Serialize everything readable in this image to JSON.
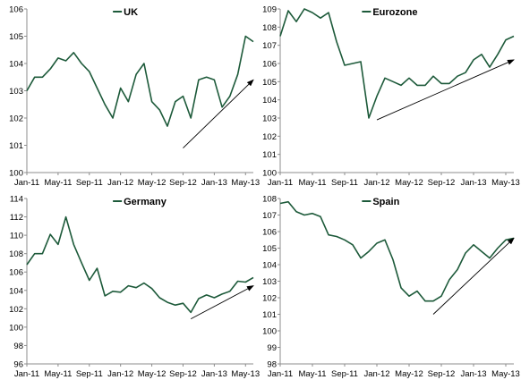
{
  "chart_data": [
    {
      "type": "line",
      "title": "UK",
      "color": "#1d5a3a",
      "ylim": [
        100,
        106
      ],
      "yticks": [
        100,
        101,
        102,
        103,
        104,
        105,
        106
      ],
      "xticks": [
        "Jan-11",
        "May-11",
        "Sep-11",
        "Jan-12",
        "May-12",
        "Sep-12",
        "Jan-13",
        "May-13"
      ],
      "x": [
        "Jan-11",
        "Feb-11",
        "Mar-11",
        "Apr-11",
        "May-11",
        "Jun-11",
        "Jul-11",
        "Aug-11",
        "Sep-11",
        "Oct-11",
        "Nov-11",
        "Dec-11",
        "Jan-12",
        "Feb-12",
        "Mar-12",
        "Apr-12",
        "May-12",
        "Jun-12",
        "Jul-12",
        "Aug-12",
        "Sep-12",
        "Oct-12",
        "Nov-12",
        "Dec-12",
        "Jan-13",
        "Feb-13",
        "Mar-13",
        "Apr-13",
        "May-13",
        "Jun-13"
      ],
      "values": [
        103.0,
        103.5,
        103.5,
        103.8,
        104.2,
        104.1,
        104.4,
        104.0,
        103.7,
        103.1,
        102.5,
        102.0,
        103.1,
        102.6,
        103.6,
        104.0,
        102.6,
        102.3,
        101.7,
        102.6,
        102.8,
        102.0,
        103.4,
        103.5,
        103.4,
        102.4,
        102.8,
        103.6,
        105.0,
        104.8
      ],
      "trend": {
        "from": [
          "Sep-12",
          100.9
        ],
        "to": [
          "Jun-13",
          103.4
        ]
      }
    },
    {
      "type": "line",
      "title": "Eurozone",
      "color": "#1d5a3a",
      "ylim": [
        100,
        109
      ],
      "yticks": [
        100,
        101,
        102,
        103,
        104,
        105,
        106,
        107,
        108,
        109
      ],
      "xticks": [
        "Jan-11",
        "May-11",
        "Sep-11",
        "Jan-12",
        "May-12",
        "Sep-12",
        "Jan-13",
        "May-13"
      ],
      "x": [
        "Jan-11",
        "Feb-11",
        "Mar-11",
        "Apr-11",
        "May-11",
        "Jun-11",
        "Jul-11",
        "Aug-11",
        "Sep-11",
        "Oct-11",
        "Nov-11",
        "Dec-11",
        "Jan-12",
        "Feb-12",
        "Mar-12",
        "Apr-12",
        "May-12",
        "Jun-12",
        "Jul-12",
        "Aug-12",
        "Sep-12",
        "Oct-12",
        "Nov-12",
        "Dec-12",
        "Jan-13",
        "Feb-13",
        "Mar-13",
        "Apr-13",
        "May-13",
        "Jun-13"
      ],
      "values": [
        107.5,
        108.9,
        108.3,
        109.0,
        108.8,
        108.5,
        108.8,
        107.2,
        105.9,
        106.0,
        106.1,
        103.0,
        104.2,
        105.2,
        105.0,
        104.8,
        105.2,
        104.8,
        104.8,
        105.3,
        104.9,
        104.9,
        105.3,
        105.5,
        106.2,
        106.5,
        105.8,
        106.5,
        107.3,
        107.5
      ],
      "trend": {
        "from": [
          "Jan-12",
          102.9
        ],
        "to": [
          "Jun-13",
          106.2
        ]
      }
    },
    {
      "type": "line",
      "title": "Germany",
      "color": "#1d5a3a",
      "ylim": [
        96,
        114
      ],
      "yticks": [
        96,
        98,
        100,
        102,
        104,
        106,
        108,
        110,
        112,
        114
      ],
      "xticks": [
        "Jan-11",
        "May-11",
        "Sep-11",
        "Jan-12",
        "May-12",
        "Sep-12",
        "Jan-13",
        "May-13"
      ],
      "x": [
        "Jan-11",
        "Feb-11",
        "Mar-11",
        "Apr-11",
        "May-11",
        "Jun-11",
        "Jul-11",
        "Aug-11",
        "Sep-11",
        "Oct-11",
        "Nov-11",
        "Dec-11",
        "Jan-12",
        "Feb-12",
        "Mar-12",
        "Apr-12",
        "May-12",
        "Jun-12",
        "Jul-12",
        "Aug-12",
        "Sep-12",
        "Oct-12",
        "Nov-12",
        "Dec-12",
        "Jan-13",
        "Feb-13",
        "Mar-13",
        "Apr-13",
        "May-13",
        "Jun-13"
      ],
      "values": [
        106.8,
        108.0,
        108.0,
        110.1,
        109.0,
        112.0,
        109.0,
        107.0,
        105.1,
        106.4,
        103.4,
        103.9,
        103.8,
        104.5,
        104.3,
        104.8,
        104.2,
        103.2,
        102.7,
        102.4,
        102.6,
        101.6,
        103.1,
        103.5,
        103.2,
        103.6,
        103.9,
        105.0,
        104.9,
        105.4
      ],
      "trend": {
        "from": [
          "Oct-12",
          100.9
        ],
        "to": [
          "Jun-13",
          104.5
        ]
      }
    },
    {
      "type": "line",
      "title": "Spain",
      "color": "#1d5a3a",
      "ylim": [
        98,
        108
      ],
      "yticks": [
        98,
        99,
        100,
        101,
        102,
        103,
        104,
        105,
        106,
        107,
        108
      ],
      "xticks": [
        "Jan-11",
        "May-11",
        "Sep-11",
        "Jan-12",
        "May-12",
        "Sep-12",
        "Jan-13",
        "May-13"
      ],
      "x": [
        "Jan-11",
        "Feb-11",
        "Mar-11",
        "Apr-11",
        "May-11",
        "Jun-11",
        "Jul-11",
        "Aug-11",
        "Sep-11",
        "Oct-11",
        "Nov-11",
        "Dec-11",
        "Jan-12",
        "Feb-12",
        "Mar-12",
        "Apr-12",
        "May-12",
        "Jun-12",
        "Jul-12",
        "Aug-12",
        "Sep-12",
        "Oct-12",
        "Nov-12",
        "Dec-12",
        "Jan-13",
        "Feb-13",
        "Mar-13",
        "Apr-13",
        "May-13",
        "Jun-13"
      ],
      "values": [
        107.7,
        107.8,
        107.2,
        107.0,
        107.1,
        106.9,
        105.8,
        105.7,
        105.5,
        105.2,
        104.4,
        104.8,
        105.3,
        105.5,
        104.3,
        102.6,
        102.1,
        102.4,
        101.8,
        101.8,
        102.1,
        103.1,
        103.7,
        104.7,
        105.2,
        104.8,
        104.4,
        105.0,
        105.5,
        105.6
      ],
      "trend": {
        "from": [
          "Aug-12",
          101.0
        ],
        "to": [
          "Jun-13",
          105.6
        ]
      }
    }
  ]
}
